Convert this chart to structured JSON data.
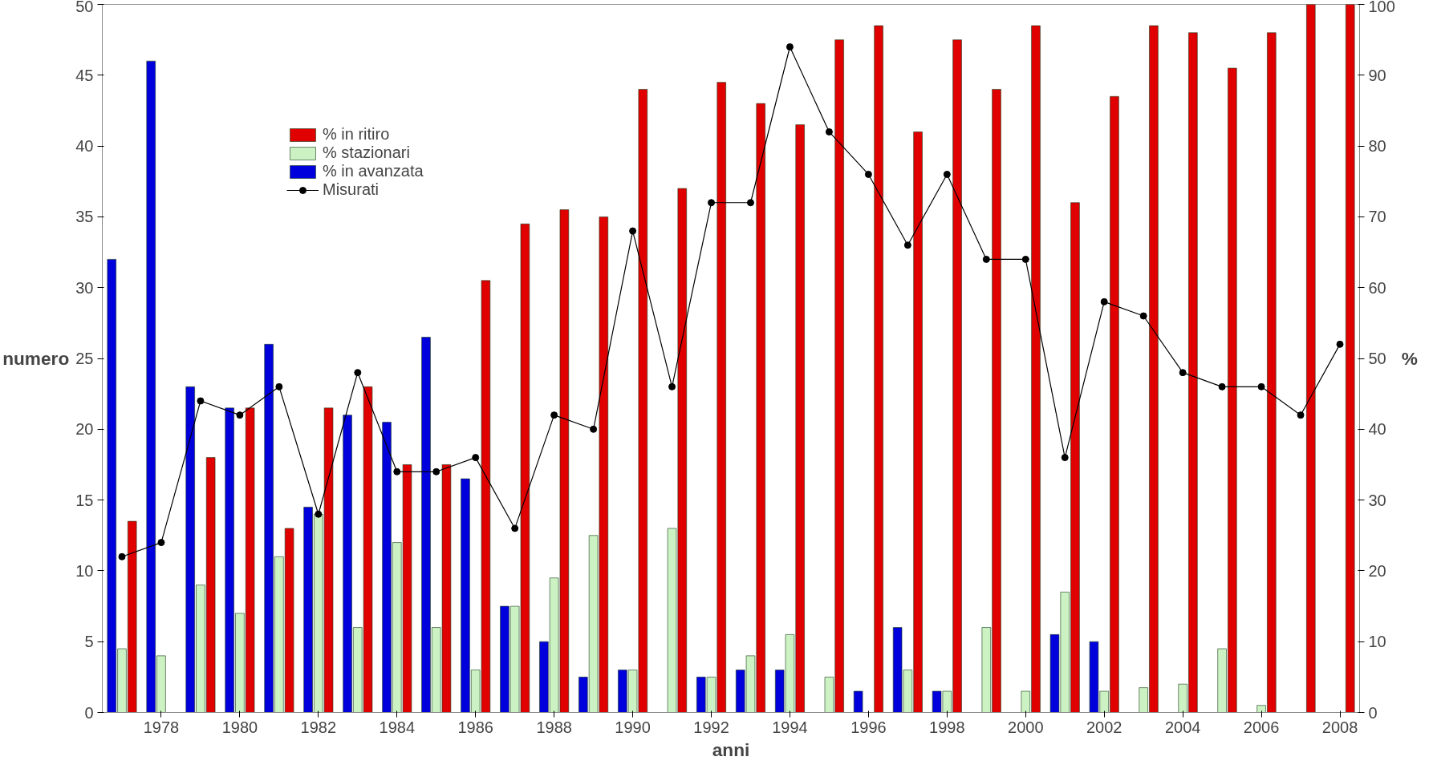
{
  "chart_data": {
    "type": "bar",
    "xlabel": "anni",
    "ylabel": "numero",
    "y2label": "%",
    "x": [
      1977,
      1978,
      1979,
      1980,
      1981,
      1982,
      1983,
      1984,
      1985,
      1986,
      1987,
      1988,
      1989,
      1990,
      1991,
      1992,
      1993,
      1994,
      1995,
      1996,
      1997,
      1998,
      1999,
      2000,
      2001,
      2002,
      2003,
      2004,
      2005,
      2006,
      2007,
      2008
    ],
    "series": [
      {
        "name": "% in avanzata",
        "color": "#0000dd",
        "axis": "y2",
        "values": [
          64,
          92,
          46,
          43,
          52,
          29,
          42,
          41,
          53,
          33,
          15,
          10,
          5,
          6,
          null,
          5,
          6,
          6,
          null,
          3,
          12,
          3,
          null,
          null,
          11,
          10,
          null,
          null,
          null,
          null,
          null,
          null
        ]
      },
      {
        "name": "% stazionari",
        "color": "#ccf2c4",
        "axis": "y2",
        "values": [
          9,
          8,
          18,
          14,
          22,
          28,
          12,
          24,
          12,
          6,
          15,
          19,
          25,
          6,
          26,
          5,
          8,
          11,
          5,
          null,
          6,
          3,
          12,
          3,
          17,
          3,
          3.5,
          4,
          9,
          1,
          null,
          null
        ]
      },
      {
        "name": "% in ritiro",
        "color": "#e00000",
        "axis": "y2",
        "values": [
          27,
          null,
          36,
          43,
          26,
          43,
          46,
          35,
          35,
          61,
          69,
          71,
          70,
          88,
          74,
          89,
          86,
          83,
          95,
          97,
          82,
          95,
          88,
          97,
          72,
          87,
          97,
          96,
          91,
          96,
          100,
          100
        ]
      },
      {
        "name": "Misurati",
        "type": "line",
        "color": "#000000",
        "axis": "y",
        "marker": "circle",
        "line_style": "solid",
        "values": [
          11,
          12,
          22,
          21,
          23,
          14,
          24,
          17,
          17,
          18,
          13,
          21,
          20,
          34,
          23,
          36,
          36,
          47,
          41,
          38,
          33,
          38,
          32,
          32,
          18,
          29,
          28,
          24,
          23,
          23,
          21,
          26
        ]
      }
    ],
    "xlim": [
      1976.5,
      2008.5
    ],
    "xticks": [
      1978,
      1980,
      1982,
      1984,
      1986,
      1988,
      1990,
      1992,
      1994,
      1996,
      1998,
      2000,
      2002,
      2004,
      2006,
      2008
    ],
    "ylim": [
      0,
      50
    ],
    "yticks": [
      0,
      5,
      10,
      15,
      20,
      25,
      30,
      35,
      40,
      45,
      50
    ],
    "y2lim": [
      0,
      100
    ],
    "y2ticks": [
      0,
      10,
      20,
      30,
      40,
      50,
      60,
      70,
      80,
      90,
      100
    ],
    "grid": false,
    "legend": "top left"
  }
}
